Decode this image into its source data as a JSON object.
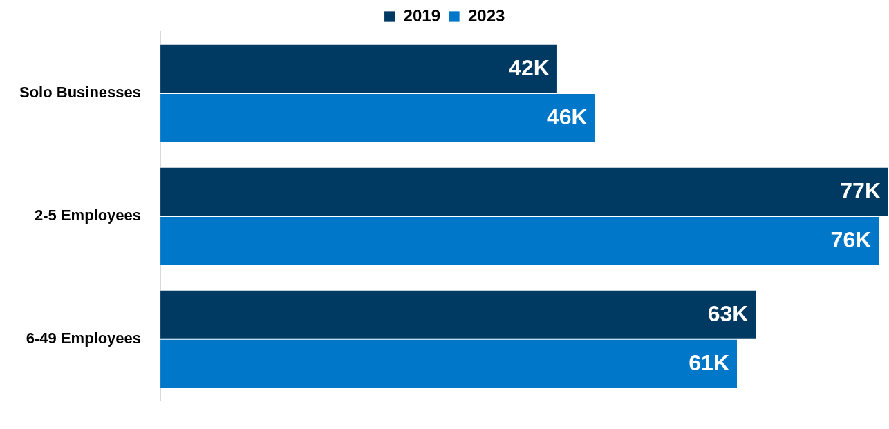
{
  "chart_data": {
    "type": "bar",
    "orientation": "horizontal",
    "categories": [
      "Solo Businesses",
      "2-5 Employees",
      "6-49 Employees"
    ],
    "series": [
      {
        "name": "2019",
        "color": "#003a63",
        "values": [
          42,
          77,
          63
        ],
        "value_labels": [
          "42K",
          "77K",
          "63K"
        ]
      },
      {
        "name": "2023",
        "color": "#0077c8",
        "values": [
          46,
          76,
          61
        ],
        "value_labels": [
          "46K",
          "76K",
          "61K"
        ]
      }
    ],
    "xlim": [
      0,
      77
    ],
    "tick_labels": "y",
    "grid": false,
    "legend": "top"
  }
}
